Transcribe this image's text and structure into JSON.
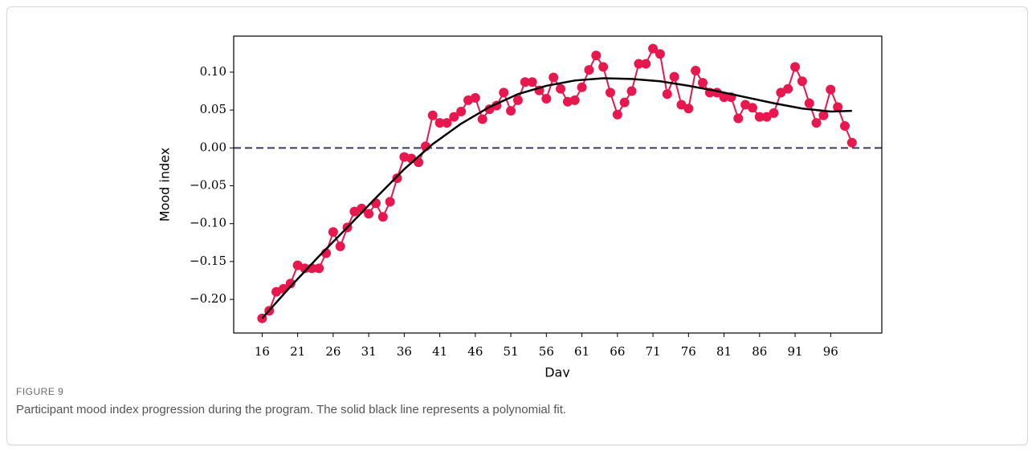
{
  "figure": {
    "label": "FIGURE 9",
    "caption": "Participant mood index progression during the program. The solid black line represents a polynomial fit."
  },
  "chart_data": {
    "type": "line",
    "xlabel": "Day",
    "ylabel": "Mood index",
    "x": [
      16,
      17,
      18,
      19,
      20,
      21,
      22,
      23,
      24,
      25,
      26,
      27,
      28,
      29,
      30,
      31,
      32,
      33,
      34,
      35,
      36,
      37,
      38,
      39,
      40,
      41,
      42,
      43,
      44,
      45,
      46,
      47,
      48,
      49,
      50,
      51,
      52,
      53,
      54,
      55,
      56,
      57,
      58,
      59,
      60,
      61,
      62,
      63,
      64,
      65,
      66,
      67,
      68,
      69,
      70,
      71,
      72,
      73,
      74,
      75,
      76,
      77,
      78,
      79,
      80,
      81,
      82,
      83,
      84,
      85,
      86,
      87,
      88,
      89,
      90,
      91,
      92,
      93,
      94,
      95,
      96,
      97,
      98,
      99
    ],
    "series": [
      {
        "color": "#e8184f",
        "marker": "circle",
        "values": [
          -0.225,
          -0.215,
          -0.19,
          -0.186,
          -0.179,
          -0.155,
          -0.159,
          -0.159,
          -0.159,
          -0.139,
          -0.111,
          -0.13,
          -0.105,
          -0.084,
          -0.08,
          -0.087,
          -0.073,
          -0.091,
          -0.071,
          -0.04,
          -0.012,
          -0.014,
          -0.019,
          0.002,
          0.043,
          0.033,
          0.033,
          0.041,
          0.048,
          0.063,
          0.066,
          0.038,
          0.051,
          0.056,
          0.073,
          0.049,
          0.063,
          0.087,
          0.087,
          0.076,
          0.065,
          0.093,
          0.078,
          0.061,
          0.063,
          0.08,
          0.103,
          0.122,
          0.107,
          0.073,
          0.044,
          0.06,
          0.075,
          0.111,
          0.111,
          0.131,
          0.124,
          0.071,
          0.094,
          0.057,
          0.052,
          0.102,
          0.086,
          0.073,
          0.073,
          0.067,
          0.067,
          0.039,
          0.057,
          0.053,
          0.041,
          0.041,
          0.046,
          0.073,
          0.078,
          0.107,
          0.088,
          0.059,
          0.033,
          0.043,
          0.077,
          0.054,
          0.029,
          0.007
        ]
      },
      {
        "color": "#000000",
        "marker": "none",
        "x": [
          16,
          20,
          24,
          28,
          32,
          36,
          40,
          44,
          48,
          52,
          56,
          60,
          64,
          68,
          72,
          76,
          80,
          84,
          88,
          92,
          96,
          99
        ],
        "values": [
          -0.225,
          -0.183,
          -0.143,
          -0.105,
          -0.066,
          -0.028,
          0.005,
          0.032,
          0.054,
          0.071,
          0.082,
          0.089,
          0.092,
          0.091,
          0.088,
          0.082,
          0.075,
          0.067,
          0.059,
          0.052,
          0.048,
          0.049
        ]
      }
    ],
    "reference_line": {
      "y": 0,
      "color": "#3b3a5e",
      "style": "dashed"
    },
    "xlim": [
      12,
      103.2
    ],
    "ylim": [
      -0.2444,
      0.1476
    ],
    "xticks": [
      16,
      21,
      26,
      31,
      36,
      41,
      46,
      51,
      56,
      61,
      66,
      71,
      76,
      81,
      86,
      91,
      96
    ],
    "yticks": [
      {
        "value": -0.2,
        "label": "−0.20"
      },
      {
        "value": -0.15,
        "label": "−0.15"
      },
      {
        "value": -0.1,
        "label": "−0.10"
      },
      {
        "value": -0.05,
        "label": "−0.05"
      },
      {
        "value": 0,
        "label": "0.00"
      },
      {
        "value": 0.05,
        "label": "0.05"
      },
      {
        "value": 0.1,
        "label": "0.10"
      }
    ],
    "grid": false
  }
}
